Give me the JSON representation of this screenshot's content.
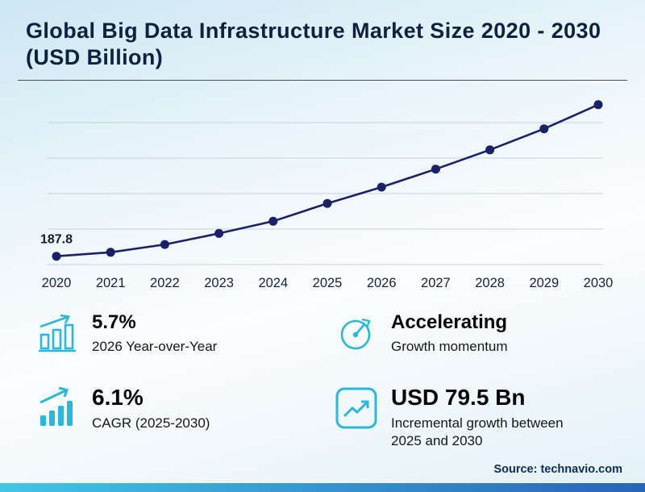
{
  "header": {
    "title": "Global Big Data Infrastructure Market Size 2020 - 2030 (USD Billion)"
  },
  "chart_data": {
    "type": "line",
    "title": "Global Big Data Infrastructure Market Size 2020 - 2030 (USD Billion)",
    "x": [
      "2020",
      "2021",
      "2022",
      "2023",
      "2024",
      "2025",
      "2026",
      "2027",
      "2028",
      "2029",
      "2030"
    ],
    "values": [
      187.8,
      191.0,
      197.3,
      206.2,
      216.0,
      230.4,
      243.5,
      258.0,
      273.5,
      290.5,
      309.9
    ],
    "first_point_label": "187.8",
    "ylabel": "USD Billion",
    "xlabel": "",
    "ylim": [
      185,
      315
    ],
    "grid": true,
    "legend": "none",
    "line_color": "#1b2168",
    "marker_color": "#1b2168"
  },
  "stats": {
    "yoy": {
      "value": "5.7%",
      "label": "2026 Year-over-Year",
      "icon": "growth-bars-icon"
    },
    "momentum": {
      "value": "Accelerating",
      "label": "Growth momentum",
      "icon": "gauge-icon"
    },
    "cagr": {
      "value": "6.1%",
      "label": "CAGR (2025-2030)",
      "icon": "ascending-bars-arrow-icon"
    },
    "incremental": {
      "value": "USD 79.5 Bn",
      "label": "Incremental growth between 2025 and 2030",
      "icon": "chart-box-icon"
    }
  },
  "footer": {
    "source": "Source: technavio.com"
  },
  "colors": {
    "accent_cyan": "#29b7dc",
    "title_navy": "#0d2140",
    "line_navy": "#1b2168",
    "gridline_gray": "#c7d1da",
    "bottom_bar_gradient": [
      "#41c6e6",
      "#2a63b6"
    ]
  }
}
